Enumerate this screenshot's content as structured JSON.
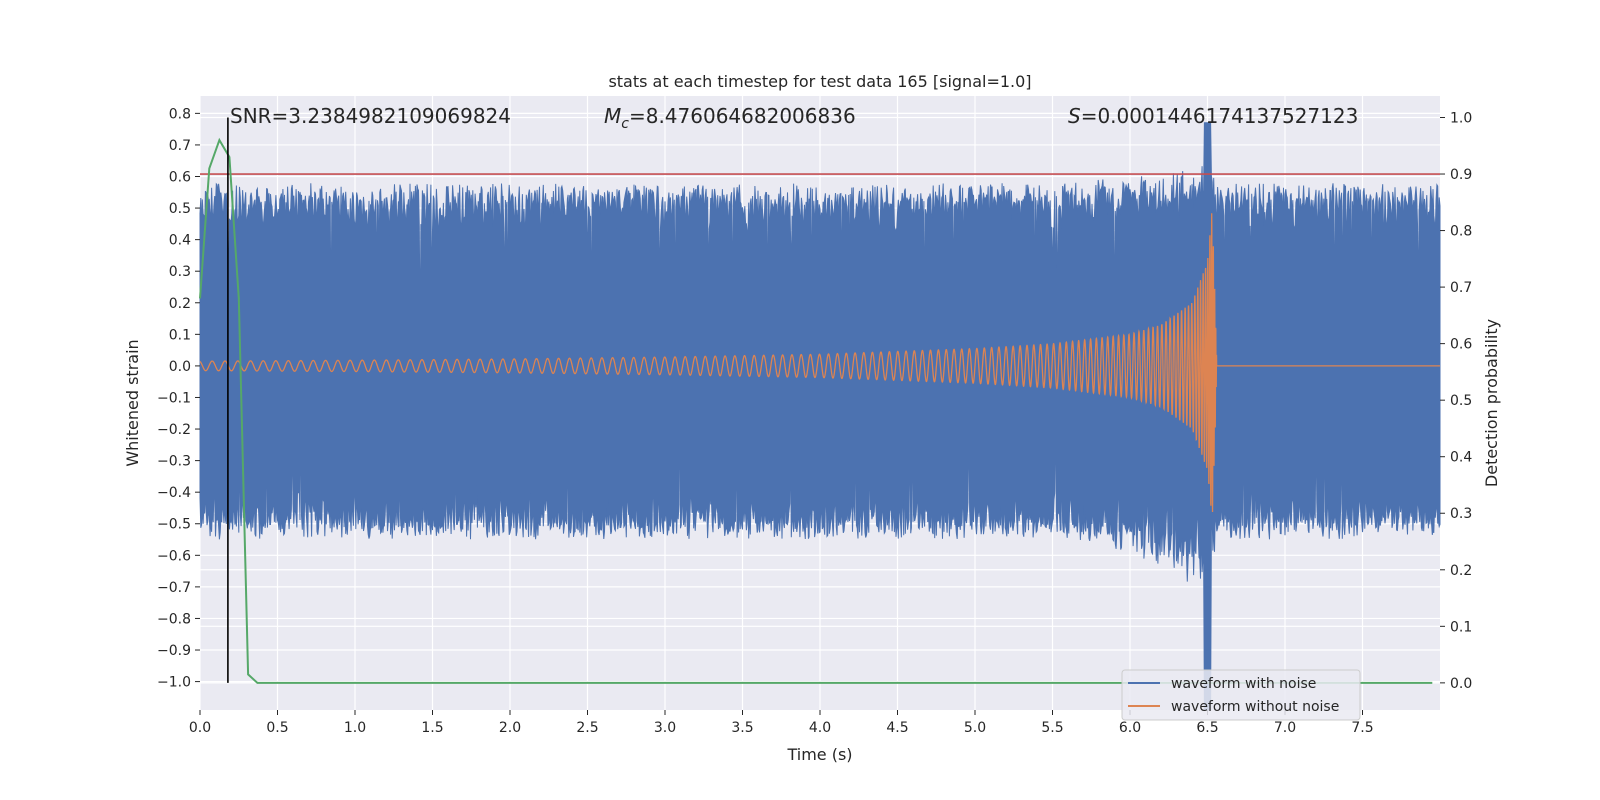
{
  "chart_data": {
    "type": "line",
    "title": "stats at each timestep for test data 165 [signal=1.0]",
    "xlabel": "Time (s)",
    "ylabel": "Whitened strain",
    "y2label": "Detection probability",
    "xlim": [
      0.0,
      8.0
    ],
    "ylim": [
      -1.09,
      0.855
    ],
    "y2lim": [
      -0.048,
      1.038
    ],
    "xticks": [
      0.0,
      0.5,
      1.0,
      1.5,
      2.0,
      2.5,
      3.0,
      3.5,
      4.0,
      4.5,
      5.0,
      5.5,
      6.0,
      6.5,
      7.0,
      7.5
    ],
    "xtick_labels": [
      "0.0",
      "0.5",
      "1.0",
      "1.5",
      "2.0",
      "2.5",
      "3.0",
      "3.5",
      "4.0",
      "4.5",
      "5.0",
      "5.5",
      "6.0",
      "6.5",
      "7.0",
      "7.5"
    ],
    "yticks": [
      0.8,
      0.7,
      0.6,
      0.5,
      0.4,
      0.3,
      0.2,
      0.1,
      0.0,
      -0.1,
      -0.2,
      -0.3,
      -0.4,
      -0.5,
      -0.6,
      -0.7,
      -0.8,
      -0.9,
      -1.0
    ],
    "ytick_labels": [
      "0.8",
      "0.7",
      "0.6",
      "0.5",
      "0.4",
      "0.3",
      "0.2",
      "0.1",
      "0.0",
      "−0.1",
      "−0.2",
      "−0.3",
      "−0.4",
      "−0.5",
      "−0.6",
      "−0.7",
      "−0.8",
      "−0.9",
      "−1.0"
    ],
    "y2ticks": [
      1.0,
      0.9,
      0.8,
      0.7,
      0.6,
      0.5,
      0.4,
      0.3,
      0.2,
      0.1,
      0.0
    ],
    "y2tick_labels": [
      "1.0",
      "0.9",
      "0.8",
      "0.7",
      "0.6",
      "0.5",
      "0.4",
      "0.3",
      "0.2",
      "0.1",
      "0.0"
    ],
    "annotations": {
      "snr_label": "SNR=3.2384982109069824",
      "mc_symbol": "M",
      "mc_subscript": "c",
      "mc_value": "=8.476064682006836",
      "s_symbol": "S",
      "s_value": "=0.0001446174137527123"
    },
    "series": [
      {
        "name": "waveform with noise",
        "color": "#4c72b0",
        "axis": "left",
        "description_points": {
          "band_upper": 0.55,
          "band_lower": -0.52,
          "merger_time": 6.5,
          "merger_min": -1.09,
          "merger_max": 0.77
        }
      },
      {
        "name": "waveform without noise",
        "color": "#dd8452",
        "axis": "left",
        "envelope": {
          "t": [
            0.0,
            1.0,
            2.0,
            3.0,
            4.0,
            5.0,
            5.5,
            6.0,
            6.2,
            6.4,
            6.5,
            6.53,
            6.55,
            6.56,
            8.0
          ],
          "amp": [
            0.015,
            0.018,
            0.022,
            0.028,
            0.037,
            0.055,
            0.07,
            0.1,
            0.13,
            0.2,
            0.33,
            0.5,
            0.2,
            0.0,
            0.0
          ]
        }
      },
      {
        "name": "detection probability",
        "color": "#55a868",
        "axis": "right",
        "x": [
          0.0,
          0.06,
          0.125,
          0.19,
          0.25,
          0.31,
          0.37,
          7.95
        ],
        "y": [
          0.68,
          0.91,
          0.96,
          0.93,
          0.68,
          0.015,
          0.0,
          0.0
        ]
      }
    ],
    "threshold_line": {
      "y2": 0.9,
      "color": "#c44e52"
    },
    "marker_line": {
      "x": 0.18,
      "y2_from": 0.0,
      "y2_to": 1.0,
      "color": "#000000"
    },
    "legend": {
      "placement": "lower-right",
      "entries": [
        "waveform with noise",
        "waveform without noise"
      ]
    }
  }
}
